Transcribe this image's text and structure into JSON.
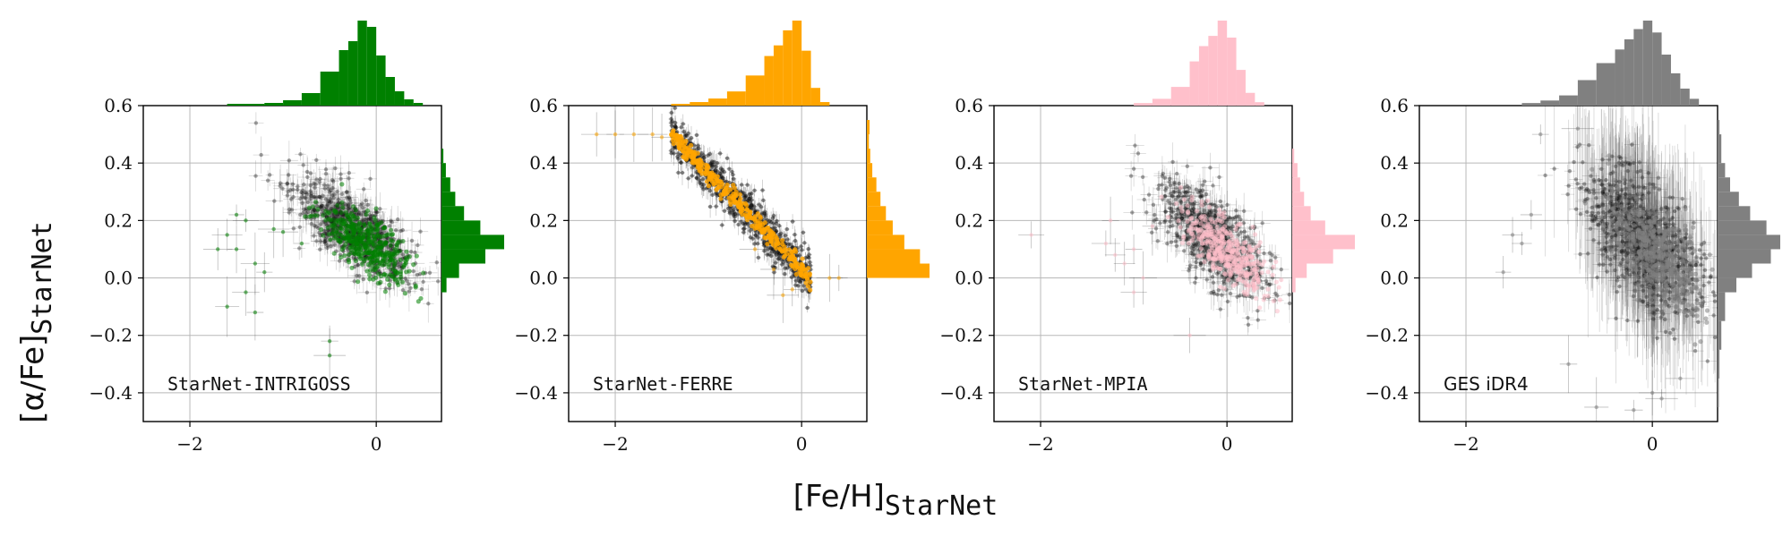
{
  "figure": {
    "xlabel_main": "[Fe/H]",
    "xlabel_sub": "StarNet",
    "ylabel_main": "[α/Fe]",
    "ylabel_sub": "StarNet"
  },
  "chart_data": [
    {
      "type": "scatter",
      "label": "StarNet-INTRIGOSS",
      "label_font": "mono",
      "color": "#008000",
      "xlim": [
        -2.5,
        0.7
      ],
      "ylim": [
        -0.5,
        0.6
      ],
      "xticks": [
        -2,
        0
      ],
      "yticks": [
        -0.4,
        -0.2,
        0.0,
        0.2,
        0.4,
        0.6
      ],
      "grid": true,
      "cloud": {
        "cx": -0.25,
        "cy": 0.17,
        "sx": 0.33,
        "sy": 0.09,
        "rho": -0.72,
        "n": 700
      },
      "outliers": [
        [
          -1.6,
          0.15
        ],
        [
          -1.5,
          0.1
        ],
        [
          -1.3,
          0.05
        ],
        [
          -1.2,
          0.02
        ],
        [
          -1.4,
          0.2
        ],
        [
          -1.6,
          -0.1
        ],
        [
          -1.4,
          -0.05
        ],
        [
          -1.5,
          0.22
        ],
        [
          -1.1,
          0.17
        ],
        [
          -1.3,
          -0.12
        ],
        [
          -0.5,
          -0.27
        ],
        [
          -0.5,
          -0.22
        ],
        [
          -1.0,
          0.16
        ],
        [
          -0.8,
          0.12
        ],
        [
          -1.7,
          0.1
        ]
      ],
      "x_hist": [
        [
          -1.6,
          0.02
        ],
        [
          -1.4,
          0.02
        ],
        [
          -1.2,
          0.03
        ],
        [
          -1.0,
          0.06
        ],
        [
          -0.8,
          0.14
        ],
        [
          -0.6,
          0.38
        ],
        [
          -0.4,
          0.62
        ],
        [
          -0.3,
          0.72
        ],
        [
          -0.2,
          0.95
        ],
        [
          -0.1,
          0.88
        ],
        [
          0.0,
          0.56
        ],
        [
          0.1,
          0.32
        ],
        [
          0.2,
          0.16
        ],
        [
          0.3,
          0.07
        ],
        [
          0.4,
          0.03
        ]
      ],
      "y_hist": [
        [
          -0.05,
          0.08
        ],
        [
          0.0,
          0.28
        ],
        [
          0.05,
          0.7
        ],
        [
          0.1,
          1.0
        ],
        [
          0.15,
          0.62
        ],
        [
          0.2,
          0.36
        ],
        [
          0.25,
          0.22
        ],
        [
          0.3,
          0.14
        ],
        [
          0.35,
          0.07
        ],
        [
          0.4,
          0.03
        ]
      ]
    },
    {
      "type": "scatter",
      "label": "StarNet-FERRE",
      "label_font": "mono",
      "color": "#FFA500",
      "xlim": [
        -2.5,
        0.7
      ],
      "ylim": [
        -0.5,
        0.6
      ],
      "xticks": [
        -2,
        0
      ],
      "yticks": [
        -0.4,
        -0.2,
        0.0,
        0.2,
        0.4,
        0.6
      ],
      "grid": true,
      "band": {
        "x_start": -1.4,
        "x_end": 0.1,
        "y_start": 0.5,
        "y_end": 0.0,
        "width": 0.04,
        "n": 700
      },
      "outliers": [
        [
          -2.2,
          0.5
        ],
        [
          -2.0,
          0.5
        ],
        [
          -1.8,
          0.5
        ],
        [
          -1.6,
          0.5
        ],
        [
          -1.5,
          0.49
        ],
        [
          -0.3,
          0.03
        ],
        [
          -0.5,
          0.1
        ],
        [
          0.3,
          0.0
        ],
        [
          0.4,
          0.0
        ],
        [
          -0.2,
          -0.06
        ],
        [
          -0.1,
          -0.04
        ]
      ],
      "x_hist": [
        [
          -1.4,
          0.02
        ],
        [
          -1.2,
          0.04
        ],
        [
          -1.0,
          0.08
        ],
        [
          -0.8,
          0.16
        ],
        [
          -0.6,
          0.34
        ],
        [
          -0.4,
          0.56
        ],
        [
          -0.3,
          0.68
        ],
        [
          -0.2,
          0.85
        ],
        [
          -0.1,
          0.96
        ],
        [
          0.0,
          0.62
        ],
        [
          0.1,
          0.2
        ],
        [
          0.2,
          0.04
        ]
      ],
      "y_hist": [
        [
          0.0,
          0.92
        ],
        [
          0.05,
          0.78
        ],
        [
          0.1,
          0.55
        ],
        [
          0.15,
          0.38
        ],
        [
          0.2,
          0.28
        ],
        [
          0.25,
          0.2
        ],
        [
          0.3,
          0.14
        ],
        [
          0.35,
          0.08
        ],
        [
          0.4,
          0.05
        ],
        [
          0.45,
          0.03
        ],
        [
          0.5,
          0.04
        ]
      ]
    },
    {
      "type": "scatter",
      "label": "StarNet-MPIA",
      "label_font": "mono",
      "color": "#FFC0CB",
      "xlim": [
        -2.5,
        0.7
      ],
      "ylim": [
        -0.5,
        0.6
      ],
      "xticks": [
        -2,
        0
      ],
      "yticks": [
        -0.4,
        -0.2,
        0.0,
        0.2,
        0.4,
        0.6
      ],
      "grid": true,
      "cloud": {
        "cx": -0.15,
        "cy": 0.14,
        "sx": 0.3,
        "sy": 0.1,
        "rho": -0.7,
        "n": 700
      },
      "outliers": [
        [
          -1.3,
          0.12
        ],
        [
          -1.2,
          0.08
        ],
        [
          -1.1,
          0.05
        ],
        [
          -1.0,
          0.1
        ],
        [
          -1.25,
          0.2
        ],
        [
          -0.9,
          0.0
        ],
        [
          -0.4,
          -0.2
        ],
        [
          -2.1,
          0.15
        ],
        [
          -1.0,
          -0.05
        ],
        [
          -0.8,
          0.18
        ]
      ],
      "x_hist": [
        [
          -1.0,
          0.03
        ],
        [
          -0.8,
          0.08
        ],
        [
          -0.6,
          0.22
        ],
        [
          -0.4,
          0.52
        ],
        [
          -0.3,
          0.7
        ],
        [
          -0.2,
          0.82
        ],
        [
          -0.1,
          1.0
        ],
        [
          0.0,
          0.8
        ],
        [
          0.1,
          0.42
        ],
        [
          0.2,
          0.15
        ],
        [
          0.3,
          0.04
        ]
      ],
      "y_hist": [
        [
          -0.05,
          0.05
        ],
        [
          0.0,
          0.22
        ],
        [
          0.05,
          0.62
        ],
        [
          0.1,
          0.95
        ],
        [
          0.15,
          0.5
        ],
        [
          0.2,
          0.28
        ],
        [
          0.25,
          0.18
        ],
        [
          0.3,
          0.12
        ],
        [
          0.35,
          0.08
        ],
        [
          0.4,
          0.03
        ]
      ]
    },
    {
      "type": "scatter",
      "label": "GES iDR4",
      "label_font": "sans",
      "color": "#808080",
      "xlim": [
        -2.5,
        0.7
      ],
      "ylim": [
        -0.5,
        0.6
      ],
      "xticks": [
        -2,
        0
      ],
      "yticks": [
        -0.4,
        -0.2,
        0.0,
        0.2,
        0.4,
        0.6
      ],
      "grid": true,
      "cloud": {
        "cx": -0.1,
        "cy": 0.13,
        "sx": 0.33,
        "sy": 0.14,
        "rho": -0.6,
        "n": 800
      },
      "outliers": [
        [
          -1.5,
          0.15
        ],
        [
          -1.4,
          0.12
        ],
        [
          -1.2,
          0.5
        ],
        [
          -1.6,
          0.02
        ],
        [
          -0.9,
          -0.3
        ],
        [
          -0.6,
          -0.45
        ],
        [
          0.0,
          -0.4
        ],
        [
          0.3,
          -0.35
        ],
        [
          -1.3,
          0.22
        ],
        [
          -0.8,
          0.52
        ],
        [
          -0.2,
          -0.46
        ],
        [
          0.1,
          -0.42
        ]
      ],
      "x_hist": [
        [
          -1.4,
          0.03
        ],
        [
          -1.2,
          0.06
        ],
        [
          -1.0,
          0.12
        ],
        [
          -0.8,
          0.3
        ],
        [
          -0.6,
          0.5
        ],
        [
          -0.4,
          0.66
        ],
        [
          -0.3,
          0.78
        ],
        [
          -0.2,
          0.9
        ],
        [
          -0.1,
          1.0
        ],
        [
          0.0,
          0.86
        ],
        [
          0.1,
          0.6
        ],
        [
          0.2,
          0.38
        ],
        [
          0.3,
          0.2
        ],
        [
          0.4,
          0.08
        ]
      ],
      "y_hist": [
        [
          -0.45,
          0.02
        ],
        [
          -0.35,
          0.03
        ],
        [
          -0.25,
          0.06
        ],
        [
          -0.15,
          0.12
        ],
        [
          -0.05,
          0.3
        ],
        [
          0.0,
          0.55
        ],
        [
          0.05,
          0.85
        ],
        [
          0.1,
          1.0
        ],
        [
          0.15,
          0.78
        ],
        [
          0.2,
          0.52
        ],
        [
          0.25,
          0.34
        ],
        [
          0.3,
          0.2
        ],
        [
          0.35,
          0.12
        ],
        [
          0.4,
          0.06
        ],
        [
          0.5,
          0.03
        ]
      ]
    }
  ]
}
